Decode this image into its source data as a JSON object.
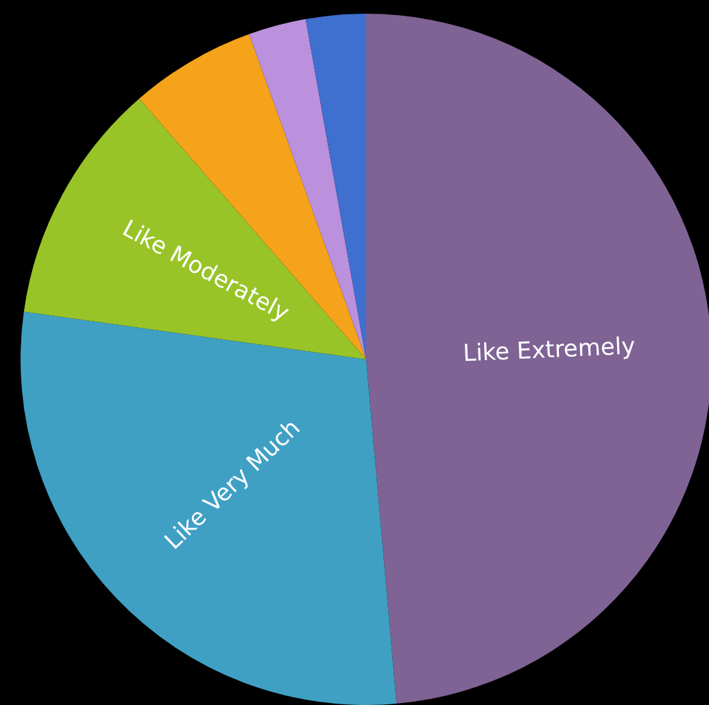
{
  "chart_data": {
    "type": "pie",
    "categories": [
      "Like Extremely",
      "Like Very Much",
      "Like Moderately",
      null,
      null,
      null
    ],
    "values": [
      48.6,
      28.6,
      11.4,
      5.9,
      2.7,
      2.8
    ],
    "colors": [
      "#7e6394",
      "#3fa0c4",
      "#98c428",
      "#f5a31b",
      "#bb90dc",
      "#3f6fcf"
    ],
    "legend": false
  }
}
